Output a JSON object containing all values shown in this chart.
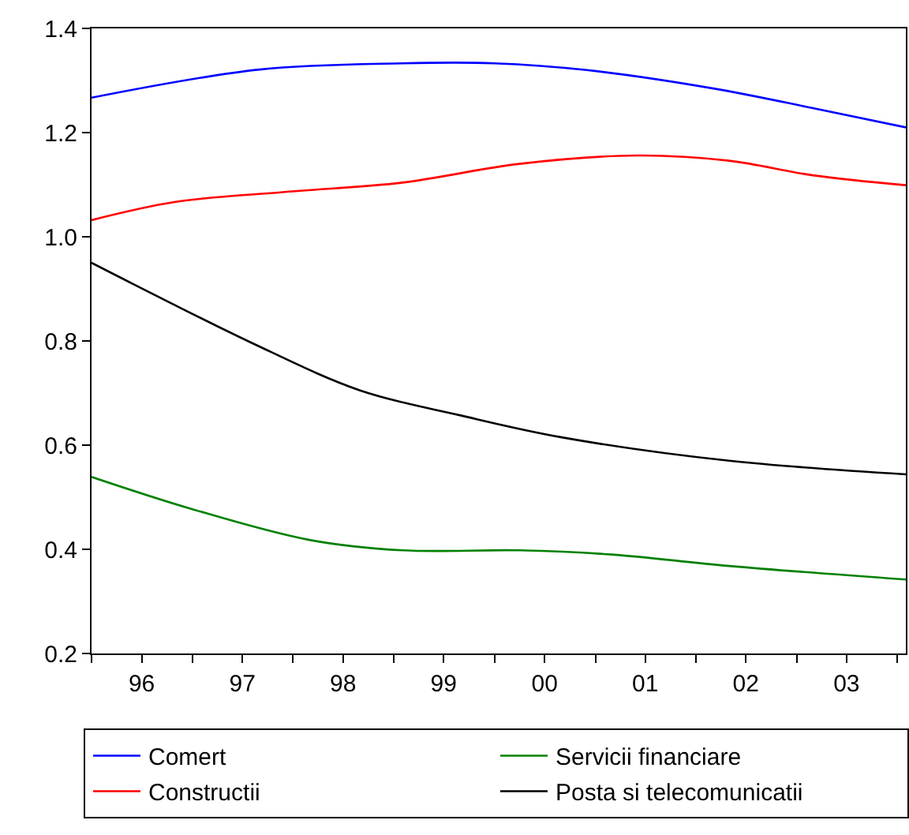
{
  "chart_data": {
    "type": "line",
    "series": [
      {
        "name": "Comert",
        "color": "#0000ff",
        "x": [
          "1996-01",
          "1997-09",
          "1999-02",
          "2000-01",
          "2000-12",
          "2002-03",
          "2003-03",
          "2004-02"
        ],
        "values": [
          1.267,
          1.321,
          1.333,
          1.333,
          1.32,
          1.285,
          1.247,
          1.21
        ]
      },
      {
        "name": "Servicii financiare",
        "color": "#008000",
        "x": [
          "1996-01",
          "1997-01",
          "1998-03",
          "1999-02",
          "2000-04",
          "2001-03",
          "2002-05",
          "2004-02"
        ],
        "values": [
          0.539,
          0.477,
          0.418,
          0.398,
          0.398,
          0.39,
          0.368,
          0.342
        ]
      },
      {
        "name": "Constructii",
        "color": "#ff0000",
        "x": [
          "1996-01",
          "1996-11",
          "1997-12",
          "1999-02",
          "2000-04",
          "2001-06",
          "2002-05",
          "2003-03",
          "2004-02"
        ],
        "values": [
          1.032,
          1.067,
          1.086,
          1.104,
          1.14,
          1.156,
          1.146,
          1.118,
          1.099
        ]
      },
      {
        "name": "Posta si telecomunicatii",
        "color": "#000000",
        "x": [
          "1996-01",
          "1996-06",
          "1997-08",
          "1998-09",
          "1999-09",
          "2000-09",
          "2002-05",
          "2004-02"
        ],
        "values": [
          0.95,
          0.909,
          0.797,
          0.705,
          0.657,
          0.615,
          0.57,
          0.544
        ]
      }
    ],
    "xlim": [
      "1996-01",
      "2004-02"
    ],
    "xticks": [
      {
        "value": "1996",
        "label": null
      },
      {
        "value": "1996-07",
        "label": "96"
      },
      {
        "value": "1997",
        "label": null
      },
      {
        "value": "1997-07",
        "label": "97"
      },
      {
        "value": "1998",
        "label": null
      },
      {
        "value": "1998-07",
        "label": "98"
      },
      {
        "value": "1999",
        "label": null
      },
      {
        "value": "1999-07",
        "label": "99"
      },
      {
        "value": "2000",
        "label": null
      },
      {
        "value": "2000-07",
        "label": "00"
      },
      {
        "value": "2001",
        "label": null
      },
      {
        "value": "2001-07",
        "label": "01"
      },
      {
        "value": "2002",
        "label": null
      },
      {
        "value": "2002-07",
        "label": "02"
      },
      {
        "value": "2003",
        "label": null
      },
      {
        "value": "2003-07",
        "label": "03"
      },
      {
        "value": "2004",
        "label": null
      }
    ],
    "ylim": [
      0.2,
      1.4
    ],
    "yticks": [
      0.2,
      0.4,
      0.6,
      0.8,
      {
        "value": 1.0,
        "label": "1.0"
      },
      1.2,
      1.4
    ],
    "legend": "bottom",
    "marker": "none",
    "line_style": "solid"
  }
}
